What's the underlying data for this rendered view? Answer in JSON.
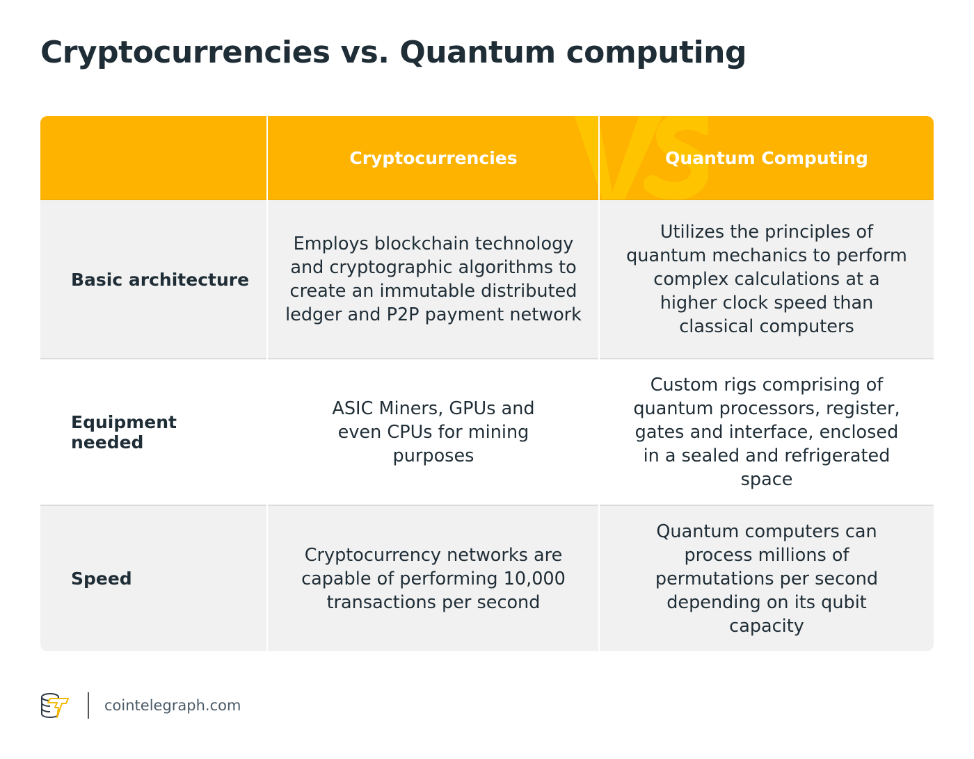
{
  "title": "Cryptocurrencies vs. Quantum computing",
  "table": {
    "watermark": "VS",
    "headers": [
      "",
      "Cryptocurrencies",
      "Quantum Computing"
    ],
    "rows": [
      {
        "label": "Basic architecture",
        "crypto": "Employs blockchain technology and cryptographic algorithms to create an immutable distributed ledger and P2P payment network",
        "quantum": "Utilizes the principles of quantum mechanics to perform complex calculations at a higher clock speed than classical computers"
      },
      {
        "label": "Equipment needed",
        "crypto": "ASIC Miners, GPUs and even CPUs for mining purposes",
        "quantum": "Custom rigs comprising of quantum processors, register, gates and interface, enclosed in a sealed and refrigerated space"
      },
      {
        "label": "Speed",
        "crypto": "Cryptocurrency networks are capable of performing 10,000 transactions per second",
        "quantum": "Quantum computers can process millions of permutations per second depending on its qubit capacity"
      }
    ]
  },
  "footer": {
    "logo_icon": "cointelegraph-logo-icon",
    "site": "cointelegraph.com"
  },
  "colors": {
    "header": "#fdb300",
    "text": "#1f2d36",
    "shaded_row": "#f1f1f1"
  }
}
